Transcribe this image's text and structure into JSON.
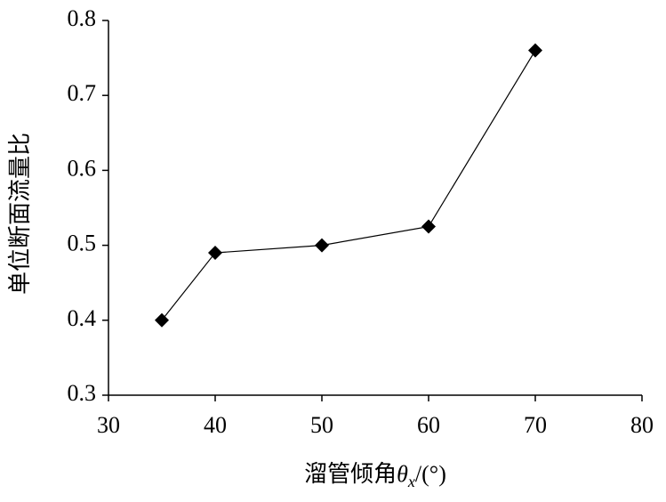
{
  "chart_data": {
    "type": "line",
    "y_label": "单位断面流量比",
    "x_label": {
      "prefix": "溜管倾角",
      "symbol": "θ",
      "subscript": "x",
      "suffix": "/(°)"
    },
    "x": [
      35,
      40,
      50,
      60,
      70
    ],
    "series": [
      {
        "color": "#000000",
        "values": [
          0.4,
          0.49,
          0.5,
          0.525,
          0.76
        ]
      }
    ],
    "xlim": [
      30,
      80
    ],
    "xticks": [
      30,
      40,
      50,
      60,
      70,
      80
    ],
    "ylim": [
      0.3,
      0.8
    ],
    "yticks": [
      0.3,
      0.4,
      0.5,
      0.6,
      0.7,
      0.8
    ],
    "grid": false
  }
}
